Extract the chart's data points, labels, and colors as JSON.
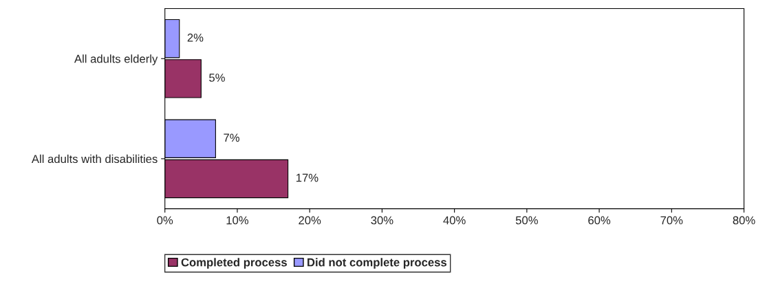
{
  "chart_data": {
    "type": "bar",
    "orientation": "horizontal",
    "categories": [
      "All adults elderly",
      "All adults with disabilities"
    ],
    "series": [
      {
        "name": "Completed process",
        "color": "#993366",
        "values": [
          5,
          17
        ],
        "value_labels": [
          "5%",
          "17%"
        ]
      },
      {
        "name": "Did not complete process",
        "color": "#9999ff",
        "values": [
          2,
          7
        ],
        "value_labels": [
          "2%",
          "7%"
        ]
      }
    ],
    "xlim": [
      0,
      80
    ],
    "xticks": [
      {
        "value": 0,
        "label": "0%"
      },
      {
        "value": 10,
        "label": "10%"
      },
      {
        "value": 20,
        "label": "20%"
      },
      {
        "value": 30,
        "label": "30%"
      },
      {
        "value": 40,
        "label": "40%"
      },
      {
        "value": 50,
        "label": "50%"
      },
      {
        "value": 60,
        "label": "60%"
      },
      {
        "value": 70,
        "label": "70%"
      },
      {
        "value": 80,
        "label": "80%"
      }
    ],
    "grid": false,
    "legend": "bottom"
  }
}
